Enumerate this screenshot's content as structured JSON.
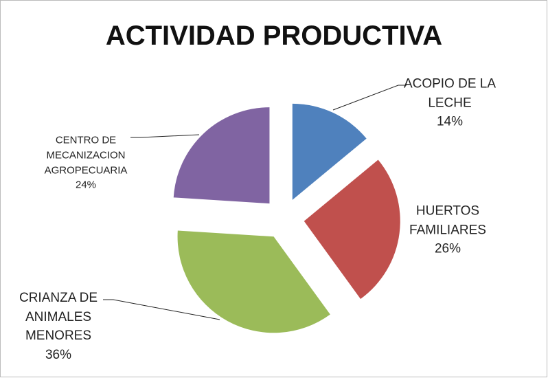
{
  "chart_data": {
    "type": "pie",
    "title": "ACTIVIDAD PRODUCTIVA",
    "categories": [
      "ACOPIO DE LA LECHE",
      "HUERTOS FAMILIARES",
      "CRIANZA DE ANIMALES MENORES",
      "CENTRO DE MECANIZACION AGROPECUARIA"
    ],
    "values": [
      14,
      26,
      36,
      24
    ],
    "value_labels": [
      "14%",
      "26%",
      "36%",
      "24%"
    ],
    "colors": [
      "#4f81bd",
      "#c0504d",
      "#9bbb59",
      "#8064a2"
    ],
    "exploded": true
  }
}
